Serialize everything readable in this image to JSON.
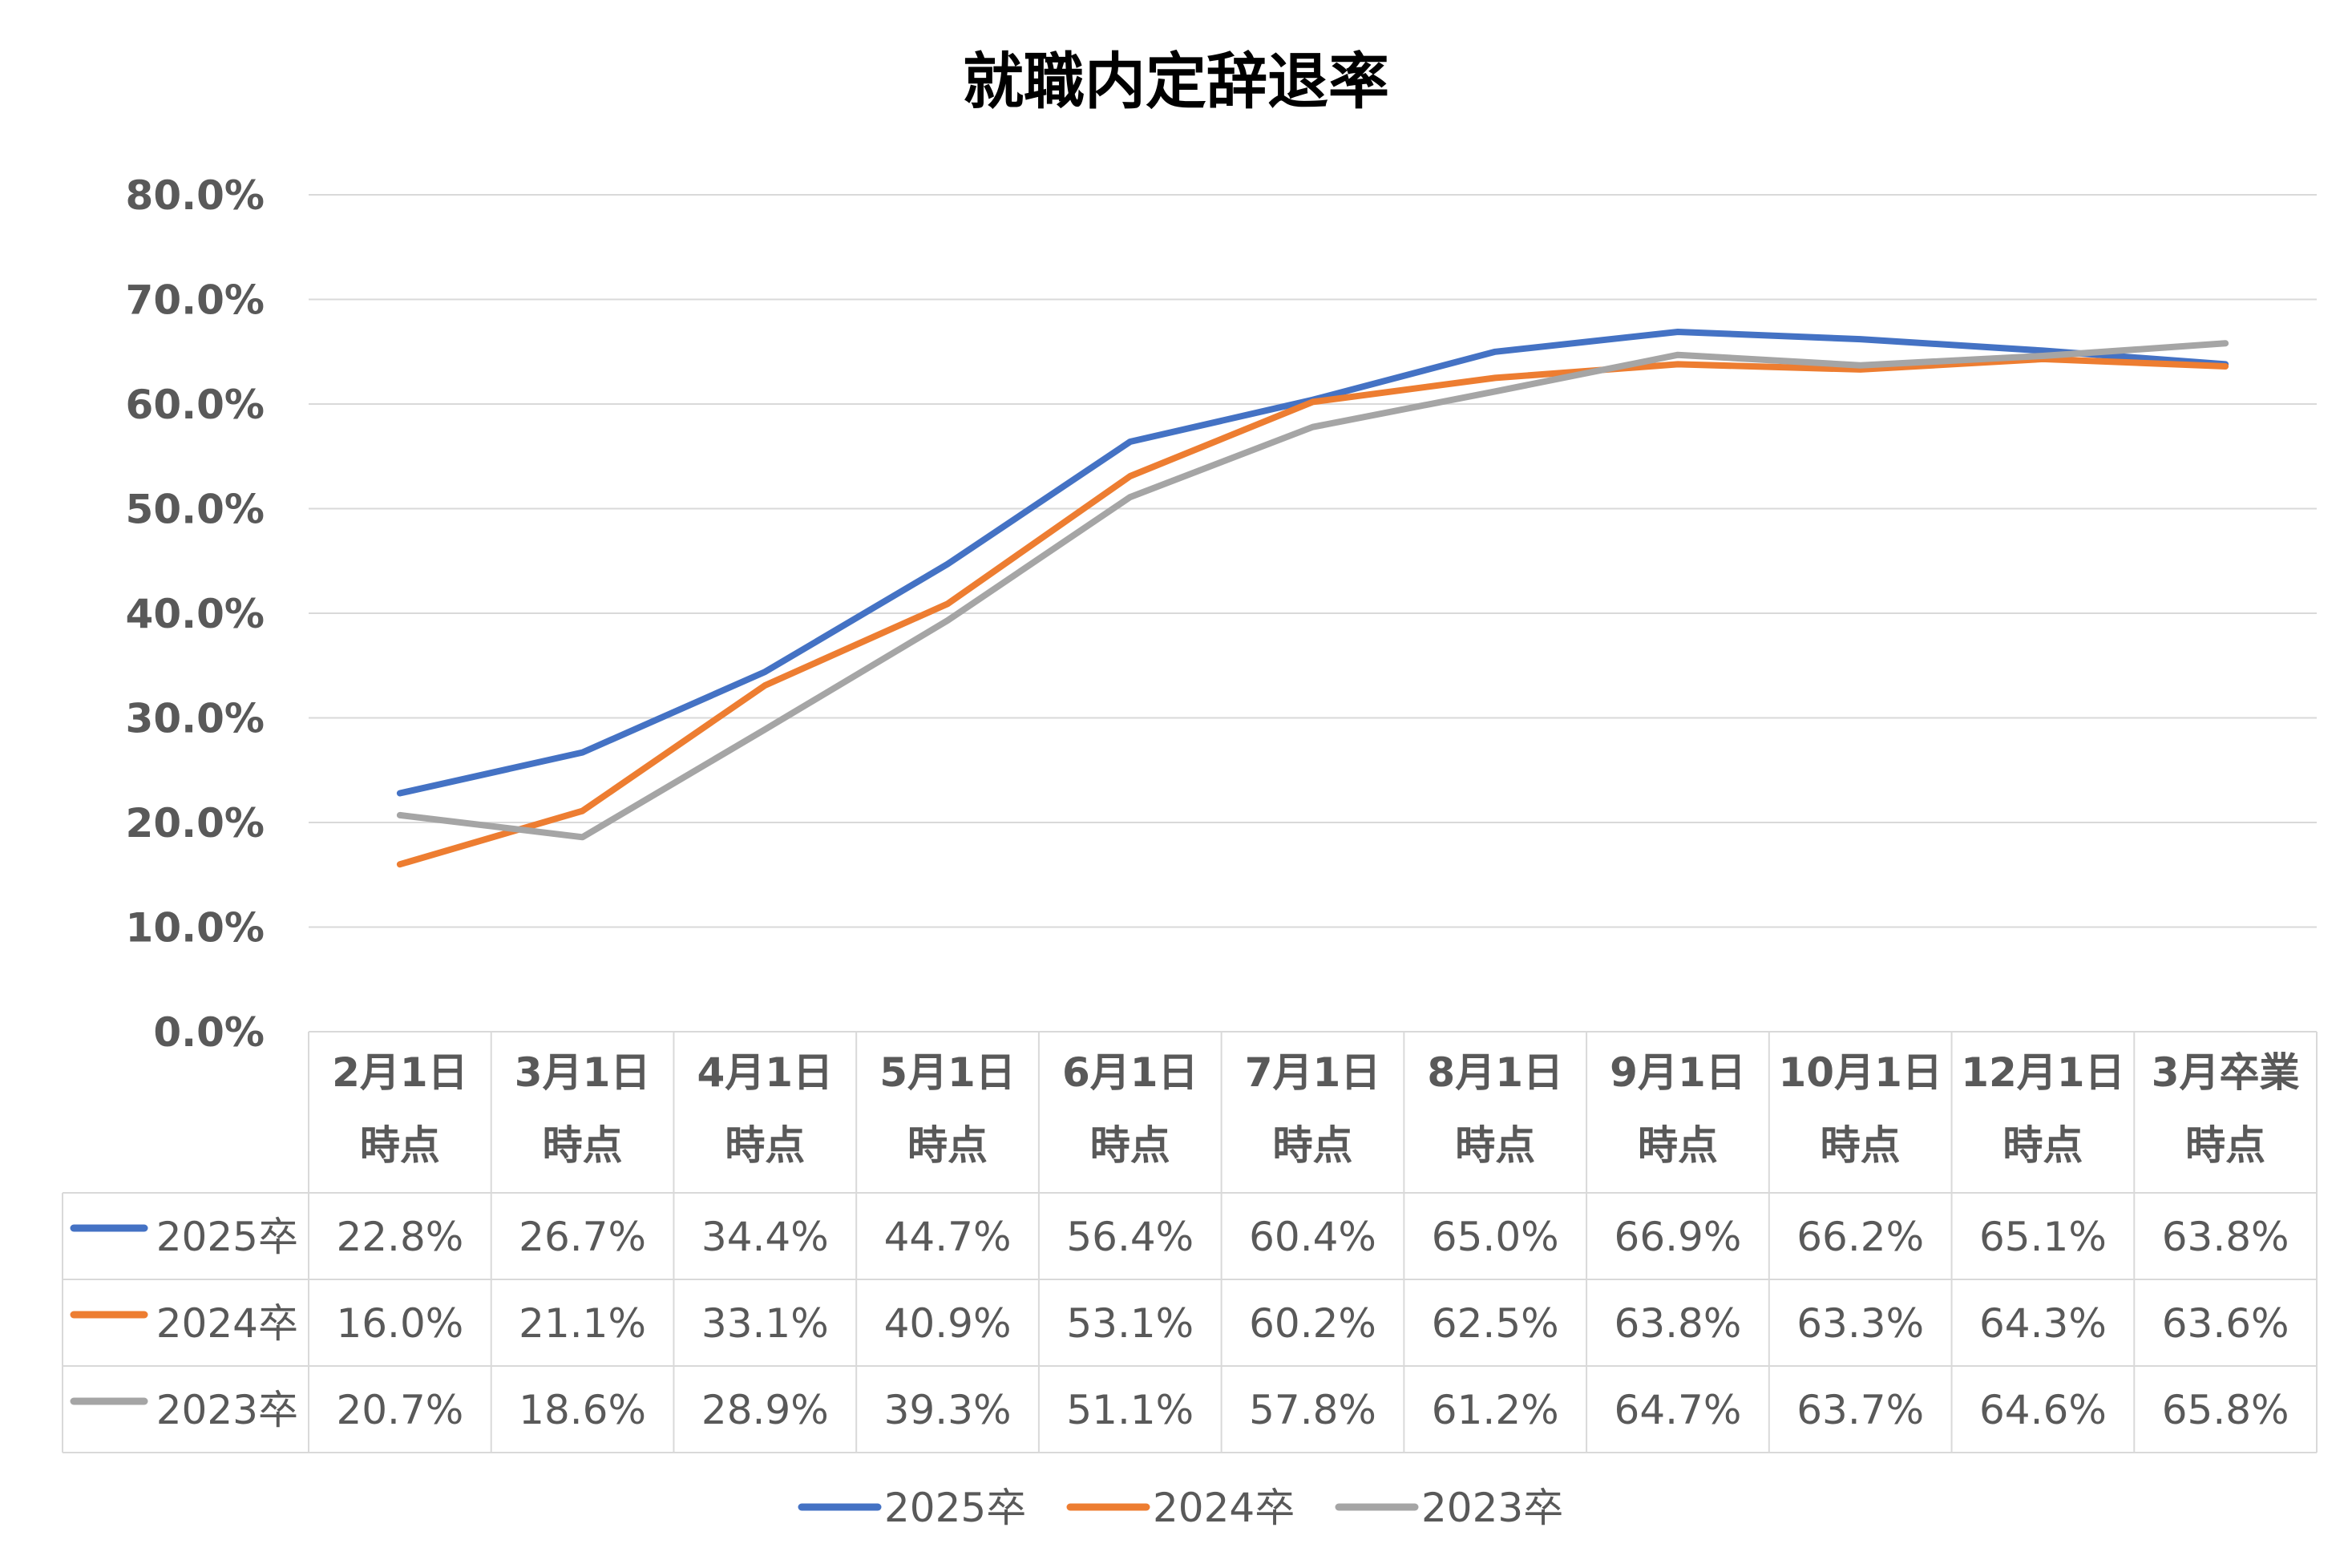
{
  "chart_data": {
    "type": "line",
    "title": "就職内定辞退率",
    "categories": [
      [
        "2月1日",
        "時点"
      ],
      [
        "3月1日",
        "時点"
      ],
      [
        "4月1日",
        "時点"
      ],
      [
        "5月1日",
        "時点"
      ],
      [
        "6月1日",
        "時点"
      ],
      [
        "7月1日",
        "時点"
      ],
      [
        "8月1日",
        "時点"
      ],
      [
        "9月1日",
        "時点"
      ],
      [
        "10月1日",
        "時点"
      ],
      [
        "12月1日",
        "時点"
      ],
      [
        "3月卒業",
        "時点"
      ]
    ],
    "ylim": [
      0,
      80
    ],
    "yticks": [
      0,
      10,
      20,
      30,
      40,
      50,
      60,
      70,
      80
    ],
    "ytick_labels": [
      "0.0%",
      "10.0%",
      "20.0%",
      "30.0%",
      "40.0%",
      "50.0%",
      "60.0%",
      "70.0%",
      "80.0%"
    ],
    "grid": true,
    "legend_position": "bottom",
    "data_table": true,
    "series": [
      {
        "name": "2025卒",
        "color": "#4472c4",
        "values": [
          22.8,
          26.7,
          34.4,
          44.7,
          56.4,
          60.4,
          65.0,
          66.9,
          66.2,
          65.1,
          63.8
        ],
        "labels": [
          "22.8%",
          "26.7%",
          "34.4%",
          "44.7%",
          "56.4%",
          "60.4%",
          "65.0%",
          "66.9%",
          "66.2%",
          "65.1%",
          "63.8%"
        ]
      },
      {
        "name": "2024卒",
        "color": "#ed7d31",
        "values": [
          16.0,
          21.1,
          33.1,
          40.9,
          53.1,
          60.2,
          62.5,
          63.8,
          63.3,
          64.3,
          63.6
        ],
        "labels": [
          "16.0%",
          "21.1%",
          "33.1%",
          "40.9%",
          "53.1%",
          "60.2%",
          "62.5%",
          "63.8%",
          "63.3%",
          "64.3%",
          "63.6%"
        ]
      },
      {
        "name": "2023卒",
        "color": "#a5a5a5",
        "values": [
          20.7,
          18.6,
          28.9,
          39.3,
          51.1,
          57.8,
          61.2,
          64.7,
          63.7,
          64.6,
          65.8
        ],
        "labels": [
          "20.7%",
          "18.6%",
          "28.9%",
          "39.3%",
          "51.1%",
          "57.8%",
          "61.2%",
          "64.7%",
          "63.7%",
          "64.6%",
          "65.8%"
        ]
      }
    ]
  }
}
